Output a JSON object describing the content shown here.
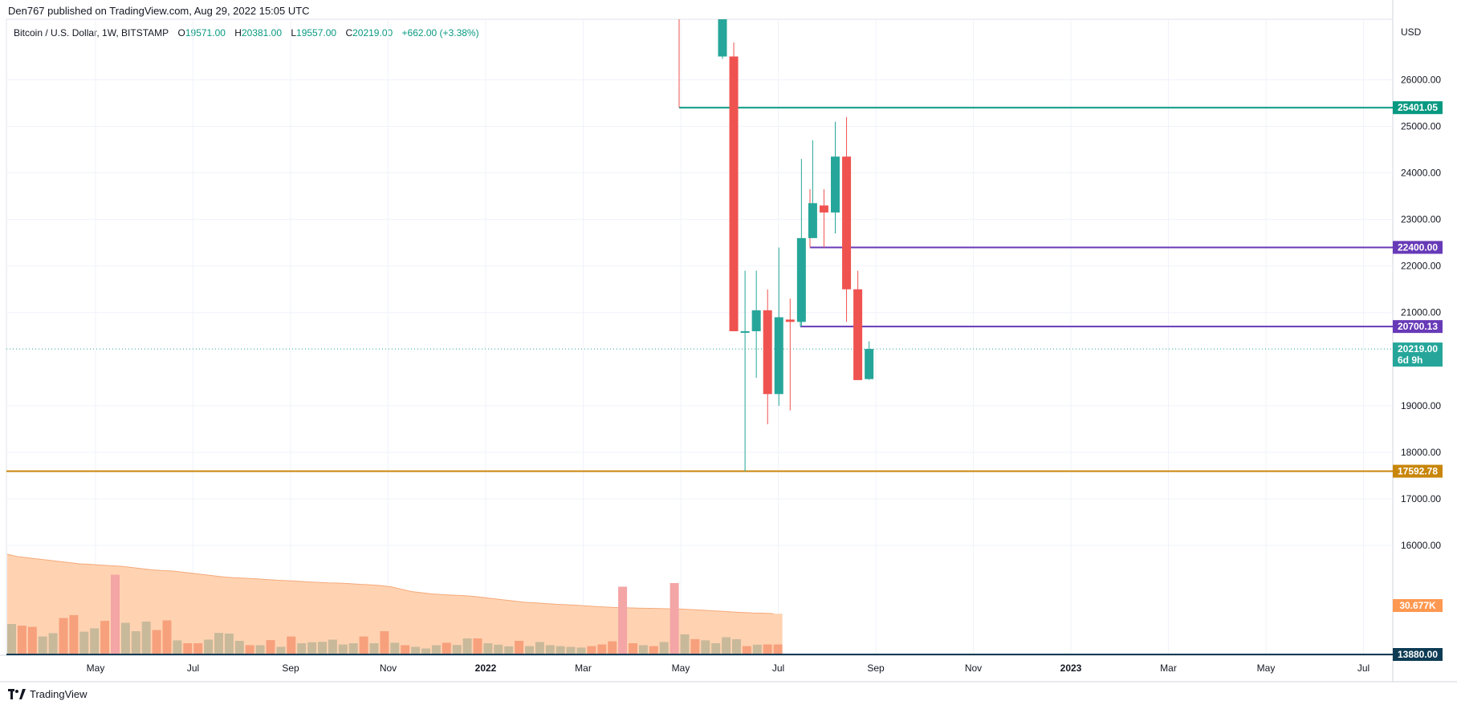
{
  "header": {
    "credit": "Den767 published on TradingView.com, Aug 29, 2022 15:05 UTC",
    "symbol": "Bitcoin / U.S. Dollar, 1W, BITSTAMP",
    "open_label": "O",
    "open": "19571.00",
    "high_label": "H",
    "high": "20381.00",
    "low_label": "L",
    "low": "19557.00",
    "close_label": "C",
    "close": "20219.00",
    "change": "+662.00 (+3.38%)"
  },
  "footer": {
    "brand": "TradingView"
  },
  "colors": {
    "up": "#26a69a",
    "down": "#ef5350",
    "vol_up": "#c8b99a",
    "vol_down": "#f7a07c",
    "vol_spike": "#f4a5a5",
    "vol_ma_fill": "#ffcba4",
    "green_line": "#089981",
    "purple_line": "#673ab7",
    "orange_line": "#c8860a",
    "navy_line": "#0d3b54",
    "vol_badge": "#ff9850"
  },
  "chart_data": {
    "type": "candlestick",
    "currency": "USD",
    "y_axis_ticks": [
      "26000.00",
      "25000.00",
      "24000.00",
      "23000.00",
      "22000.00",
      "21000.00",
      "19000.00",
      "18000.00",
      "17000.00",
      "16000.00"
    ],
    "ylim": [
      13640,
      27300
    ],
    "time_ticks": [
      {
        "label": "May",
        "year_marker": false
      },
      {
        "label": "Jul",
        "year_marker": false
      },
      {
        "label": "Sep",
        "year_marker": false
      },
      {
        "label": "Nov",
        "year_marker": false
      },
      {
        "label": "2022",
        "year_marker": true
      },
      {
        "label": "Mar",
        "year_marker": false
      },
      {
        "label": "May",
        "year_marker": false
      },
      {
        "label": "Jul",
        "year_marker": false
      },
      {
        "label": "Sep",
        "year_marker": false
      },
      {
        "label": "Nov",
        "year_marker": false
      },
      {
        "label": "2023",
        "year_marker": true
      },
      {
        "label": "Mar",
        "year_marker": false
      },
      {
        "label": "May",
        "year_marker": false
      },
      {
        "label": "Jul",
        "year_marker": false
      }
    ],
    "candles": [
      {
        "o": 26500,
        "h": 27300,
        "l": 26450,
        "c": 27300,
        "partial": true
      },
      {
        "o": 26500,
        "h": 26800,
        "l": 20600,
        "c": 20600
      },
      {
        "o": 20600,
        "h": 21900,
        "l": 17592.78,
        "c": 20600
      },
      {
        "o": 20600,
        "h": 21900,
        "l": 19600,
        "c": 21050
      },
      {
        "o": 21050,
        "h": 21500,
        "l": 18600,
        "c": 19250
      },
      {
        "o": 19250,
        "h": 22400,
        "l": 19000,
        "c": 20900
      },
      {
        "o": 20850,
        "h": 21300,
        "l": 18900,
        "c": 20800
      },
      {
        "o": 20800,
        "h": 24300,
        "l": 20700.13,
        "c": 22600
      },
      {
        "o": 22600,
        "h": 24700,
        "l": 22600,
        "c": 23350
      },
      {
        "o": 23300,
        "h": 23650,
        "l": 22400,
        "c": 23150
      },
      {
        "o": 23150,
        "h": 25100,
        "l": 22700,
        "c": 24350
      },
      {
        "o": 24350,
        "h": 25200,
        "l": 20800,
        "c": 21500
      },
      {
        "o": 21500,
        "h": 21900,
        "l": 19550,
        "c": 19550
      },
      {
        "o": 19571,
        "h": 20381,
        "l": 19557,
        "c": 20219
      }
    ],
    "horizontal_levels": [
      {
        "price": "25401.05",
        "color": "#089981"
      },
      {
        "price": "22400.00",
        "color": "#673ab7"
      },
      {
        "price": "20700.13",
        "color": "#673ab7"
      },
      {
        "price": "17592.78",
        "color": "#c8860a"
      }
    ],
    "last_price": {
      "value": "20219.00",
      "countdown": "6d 9h"
    },
    "volume_badge": "30.677K",
    "volume_axis_badge": "13880.00",
    "volume": [
      {
        "v": 13.0,
        "d": "up"
      },
      {
        "v": 12.3,
        "d": "down"
      },
      {
        "v": 11.8,
        "d": "down"
      },
      {
        "v": 7.8,
        "d": "up"
      },
      {
        "v": 9.2,
        "d": "up"
      },
      {
        "v": 15.5,
        "d": "down"
      },
      {
        "v": 16.7,
        "d": "down"
      },
      {
        "v": 9.8,
        "d": "up"
      },
      {
        "v": 11.2,
        "d": "up"
      },
      {
        "v": 14.3,
        "d": "down"
      },
      {
        "v": 33.5,
        "d": "spike"
      },
      {
        "v": 13.5,
        "d": "up"
      },
      {
        "v": 10.0,
        "d": "up"
      },
      {
        "v": 14.0,
        "d": "up"
      },
      {
        "v": 10.5,
        "d": "down"
      },
      {
        "v": 14.5,
        "d": "down"
      },
      {
        "v": 6.2,
        "d": "up"
      },
      {
        "v": 5.0,
        "d": "down"
      },
      {
        "v": 5.0,
        "d": "down"
      },
      {
        "v": 6.5,
        "d": "up"
      },
      {
        "v": 9.3,
        "d": "up"
      },
      {
        "v": 9.0,
        "d": "up"
      },
      {
        "v": 6.0,
        "d": "up"
      },
      {
        "v": 4.2,
        "d": "down"
      },
      {
        "v": 4.2,
        "d": "up"
      },
      {
        "v": 6.3,
        "d": "down"
      },
      {
        "v": 3.5,
        "d": "up"
      },
      {
        "v": 7.8,
        "d": "down"
      },
      {
        "v": 5.0,
        "d": "up"
      },
      {
        "v": 5.4,
        "d": "up"
      },
      {
        "v": 5.6,
        "d": "up"
      },
      {
        "v": 6.5,
        "d": "up"
      },
      {
        "v": 4.5,
        "d": "up"
      },
      {
        "v": 5.0,
        "d": "up"
      },
      {
        "v": 7.8,
        "d": "down"
      },
      {
        "v": 5.0,
        "d": "up"
      },
      {
        "v": 10.0,
        "d": "down"
      },
      {
        "v": 5.2,
        "d": "up"
      },
      {
        "v": 4.2,
        "d": "down"
      },
      {
        "v": 3.5,
        "d": "up"
      },
      {
        "v": 2.8,
        "d": "up"
      },
      {
        "v": 4.2,
        "d": "up"
      },
      {
        "v": 5.2,
        "d": "down"
      },
      {
        "v": 4.3,
        "d": "up"
      },
      {
        "v": 7.0,
        "d": "up"
      },
      {
        "v": 7.0,
        "d": "down"
      },
      {
        "v": 5.0,
        "d": "up"
      },
      {
        "v": 4.4,
        "d": "up"
      },
      {
        "v": 3.7,
        "d": "up"
      },
      {
        "v": 6.0,
        "d": "down"
      },
      {
        "v": 3.8,
        "d": "up"
      },
      {
        "v": 5.5,
        "d": "up"
      },
      {
        "v": 4.2,
        "d": "up"
      },
      {
        "v": 3.8,
        "d": "up"
      },
      {
        "v": 3.5,
        "d": "up"
      },
      {
        "v": 3.2,
        "d": "up"
      },
      {
        "v": 3.8,
        "d": "down"
      },
      {
        "v": 4.5,
        "d": "down"
      },
      {
        "v": 5.8,
        "d": "down"
      },
      {
        "v": 28.5,
        "d": "spike"
      },
      {
        "v": 5.0,
        "d": "down"
      },
      {
        "v": 4.2,
        "d": "up"
      },
      {
        "v": 3.8,
        "d": "down"
      },
      {
        "v": 5.5,
        "d": "up"
      },
      {
        "v": 30.0,
        "d": "spike"
      },
      {
        "v": 8.7,
        "d": "up"
      },
      {
        "v": 6.7,
        "d": "down"
      },
      {
        "v": 6.2,
        "d": "up"
      },
      {
        "v": 5.0,
        "d": "up"
      },
      {
        "v": 7.5,
        "d": "up"
      },
      {
        "v": 6.7,
        "d": "up"
      },
      {
        "v": 3.8,
        "d": "down"
      },
      {
        "v": 4.4,
        "d": "up"
      },
      {
        "v": 4.5,
        "d": "down"
      },
      {
        "v": 4.5,
        "d": "down"
      }
    ],
    "volume_ma": [
      42,
      41,
      40.5,
      40,
      39.5,
      39,
      38.5,
      38,
      37.8,
      37.5,
      37.2,
      37,
      36.5,
      36,
      35.5,
      35.2,
      35,
      34.5,
      34,
      33.5,
      33,
      32.5,
      32.2,
      32,
      31.8,
      31.5,
      31.2,
      31,
      30.8,
      30.5,
      30.3,
      30.1,
      30,
      29.8,
      29.5,
      29.3,
      29,
      28.5,
      27.5,
      26.5,
      26,
      25.5,
      25.2,
      25,
      24.8,
      24.5,
      24,
      23.5,
      23,
      22.5,
      22,
      21.8,
      21.5,
      21.2,
      21,
      20.8,
      20.5,
      20.2,
      20,
      19.8,
      19.7,
      19.6,
      19.5,
      19.4,
      19.3,
      19.2,
      19,
      18.8,
      18.5,
      18.3,
      18,
      17.8,
      17.6,
      17.5,
      17.3
    ]
  }
}
